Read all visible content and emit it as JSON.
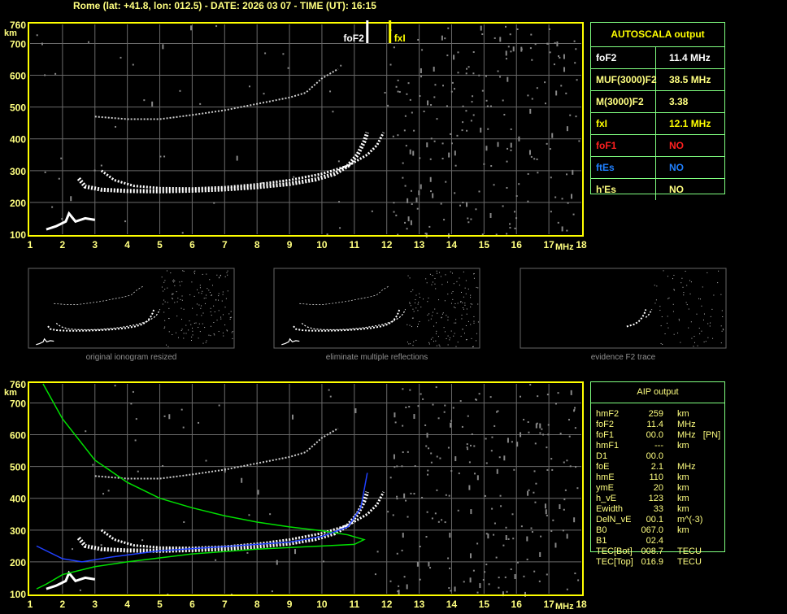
{
  "header": {
    "title": "Rome (lat: +41.8, lon: 012.5) - DATE: 2026 03 07 - TIME (UT): 16:15"
  },
  "autoscala": {
    "title": "AUTOSCALA output",
    "rows": [
      {
        "label": "foF2",
        "value": "11.4 MHz",
        "color": "#ffffff"
      },
      {
        "label": "MUF(3000)F2",
        "value": "38.5 MHz",
        "color": "#ffff80"
      },
      {
        "label": "M(3000)F2",
        "value": "3.38",
        "color": "#ffff80"
      },
      {
        "label": "fxI",
        "value": "12.1 MHz",
        "color": "#ffff00"
      },
      {
        "label": "foF1",
        "value": "NO",
        "color": "#ff2020"
      },
      {
        "label": "ftEs",
        "value": "NO",
        "color": "#2080ff"
      },
      {
        "label": "h'Es",
        "value": "NO",
        "color": "#ffff80"
      }
    ]
  },
  "aip": {
    "title": "AIP output",
    "rows": [
      [
        "hmF2",
        "259",
        "km"
      ],
      [
        "foF2",
        "11.4",
        "MHz"
      ],
      [
        "foF1",
        "00.0",
        "MHz   [PN]"
      ],
      [
        "hmF1",
        "---",
        "km"
      ],
      [
        "D1",
        "00.0",
        ""
      ],
      [
        "foE",
        "2.1",
        "MHz"
      ],
      [
        "hmE",
        "110",
        "km"
      ],
      [
        "ymE",
        "20",
        "km"
      ],
      [
        "h_vE",
        "123",
        "km"
      ],
      [
        "Ewidth",
        "33",
        "km"
      ],
      [
        "DelN_vE",
        "00.1",
        "m^(-3)"
      ],
      [
        "B0",
        "067.0",
        "km"
      ],
      [
        "B1",
        "02.4",
        ""
      ],
      [
        "TEC[Bot]",
        "008.7",
        "TECU"
      ],
      [
        "TEC[Top]",
        "016.9",
        "TECU"
      ]
    ]
  },
  "thumbnails": {
    "captions": [
      "original ionogram resized",
      "eliminate multiple reflections",
      "evidence F2 trace"
    ]
  },
  "chart_data": [
    {
      "type": "scatter",
      "title": "",
      "xlabel": "MHz",
      "ylabel": "km",
      "xlim": [
        1,
        18
      ],
      "ylim": [
        100,
        760
      ],
      "xticks": [
        "1",
        "2",
        "3",
        "4",
        "5",
        "6",
        "7",
        "8",
        "9",
        "10",
        "11",
        "12",
        "13",
        "14",
        "15",
        "16",
        "17",
        "18"
      ],
      "yticks": [
        "100",
        "200",
        "300",
        "400",
        "500",
        "600",
        "700",
        "760"
      ],
      "grid": true,
      "markers": [
        {
          "label": "foF2",
          "x": 11.4,
          "color": "#ffffff"
        },
        {
          "label": "fxI",
          "x": 12.1,
          "color": "#ffff00"
        }
      ],
      "traces": {
        "o_trace": [
          [
            2.5,
            275
          ],
          [
            2.7,
            250
          ],
          [
            3.2,
            240
          ],
          [
            4,
            236
          ],
          [
            5,
            235
          ],
          [
            6,
            237
          ],
          [
            7,
            241
          ],
          [
            8,
            248
          ],
          [
            9,
            258
          ],
          [
            9.8,
            272
          ],
          [
            10.4,
            290
          ],
          [
            10.8,
            315
          ],
          [
            11.1,
            350
          ],
          [
            11.3,
            390
          ],
          [
            11.4,
            420
          ]
        ],
        "x_trace": [
          [
            3.2,
            300
          ],
          [
            3.6,
            270
          ],
          [
            4.2,
            252
          ],
          [
            5,
            245
          ],
          [
            6,
            244
          ],
          [
            7,
            248
          ],
          [
            8,
            257
          ],
          [
            9,
            270
          ],
          [
            10,
            290
          ],
          [
            10.8,
            315
          ],
          [
            11.4,
            350
          ],
          [
            11.7,
            380
          ],
          [
            11.9,
            420
          ]
        ],
        "multiple": [
          [
            3,
            470
          ],
          [
            4,
            462
          ],
          [
            5,
            462
          ],
          [
            6,
            475
          ],
          [
            7,
            490
          ],
          [
            8,
            510
          ],
          [
            9,
            530
          ],
          [
            9.5,
            545
          ],
          [
            10,
            590
          ],
          [
            10.5,
            620
          ]
        ],
        "e_trace": [
          [
            1.5,
            115
          ],
          [
            1.8,
            125
          ],
          [
            2.1,
            140
          ],
          [
            2.2,
            165
          ],
          [
            2.4,
            140
          ],
          [
            2.7,
            150
          ],
          [
            3,
            145
          ]
        ]
      }
    },
    {
      "type": "line",
      "title": "",
      "xlabel": "MHz",
      "ylabel": "km",
      "xlim": [
        1,
        18
      ],
      "ylim": [
        100,
        760
      ],
      "xticks": [
        "1",
        "2",
        "3",
        "4",
        "5",
        "6",
        "7",
        "8",
        "9",
        "10",
        "11",
        "12",
        "13",
        "14",
        "15",
        "16",
        "17",
        "18"
      ],
      "yticks": [
        "100",
        "200",
        "300",
        "400",
        "500",
        "600",
        "700",
        "760"
      ],
      "grid": true,
      "series": [
        {
          "color": "#00e000",
          "values": [
            [
              1.4,
              760
            ],
            [
              2,
              650
            ],
            [
              3,
              520
            ],
            [
              4,
              450
            ],
            [
              5,
              400
            ],
            [
              6,
              370
            ],
            [
              7,
              345
            ],
            [
              8,
              325
            ],
            [
              9,
              310
            ],
            [
              10,
              298
            ],
            [
              10.8,
              285
            ],
            [
              11.3,
              270
            ],
            [
              11,
              255
            ],
            [
              10,
              250
            ],
            [
              8,
              240
            ],
            [
              6,
              225
            ],
            [
              4,
              200
            ],
            [
              3,
              185
            ],
            [
              2,
              160
            ],
            [
              1.5,
              130
            ],
            [
              1.2,
              115
            ]
          ]
        },
        {
          "color": "#2040ff",
          "values": [
            [
              1.2,
              250
            ],
            [
              2,
              210
            ],
            [
              2.6,
              200
            ],
            [
              3.5,
              215
            ],
            [
              5,
              235
            ],
            [
              7,
              248
            ],
            [
              9,
              262
            ],
            [
              10,
              280
            ],
            [
              10.8,
              310
            ],
            [
              11.2,
              370
            ],
            [
              11.4,
              480
            ]
          ]
        }
      ]
    }
  ]
}
